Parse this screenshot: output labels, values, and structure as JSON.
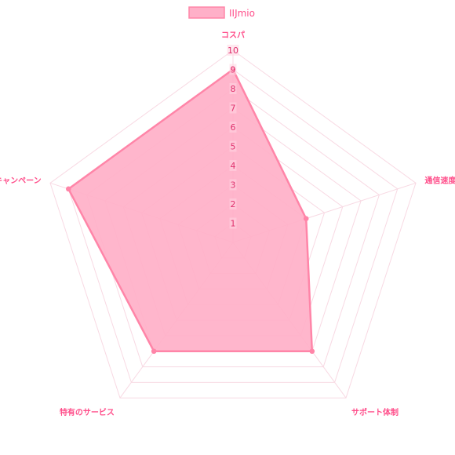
{
  "chart_data": {
    "type": "radar",
    "legend": {
      "position": "top"
    },
    "axes": [
      "コスパ",
      "通信速度",
      "サポート体制",
      "特有のサービス",
      "キャンペーン"
    ],
    "rlim": [
      0,
      10
    ],
    "ticks": [
      "1",
      "2",
      "3",
      "4",
      "5",
      "6",
      "7",
      "8",
      "9",
      "10"
    ],
    "series": [
      {
        "name": "IIJmio",
        "values": [
          9,
          4,
          7,
          7,
          9
        ]
      }
    ],
    "colors": {
      "fill": "#ffb0c8",
      "stroke": "#ff85a8",
      "grid": "#f8d9e3",
      "label": "#ff4f8b",
      "tick": "#e0306d",
      "tick_backdrop": "#ffd5e1"
    }
  }
}
